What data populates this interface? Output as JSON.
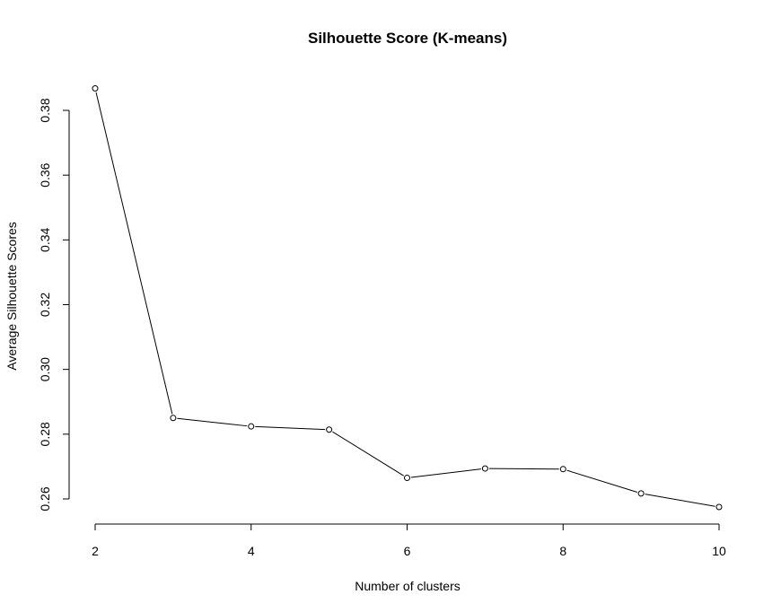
{
  "chart_data": {
    "type": "line",
    "title": "Silhouette Score (K-means)",
    "xlabel": "Number of clusters",
    "ylabel": "Average Silhouette Scores",
    "x": [
      2,
      3,
      4,
      5,
      6,
      7,
      8,
      9,
      10
    ],
    "series": [
      {
        "values": [
          0.3868,
          0.285,
          0.2824,
          0.2814,
          0.2665,
          0.2694,
          0.2692,
          0.2617,
          0.2575
        ]
      }
    ],
    "xlim": [
      2,
      10
    ],
    "ylim": [
      0.26,
      0.38
    ],
    "xticks": [
      2,
      4,
      6,
      8,
      10
    ],
    "xtick_labels": [
      "2",
      "4",
      "6",
      "8",
      "10"
    ],
    "yticks": [
      0.26,
      0.28,
      0.3,
      0.32,
      0.34,
      0.36,
      0.38
    ],
    "ytick_labels": [
      "0.26",
      "0.28",
      "0.30",
      "0.32",
      "0.34",
      "0.36",
      "0.38"
    ],
    "grid": false,
    "line_color": "#000000",
    "marker": "open-circle"
  }
}
